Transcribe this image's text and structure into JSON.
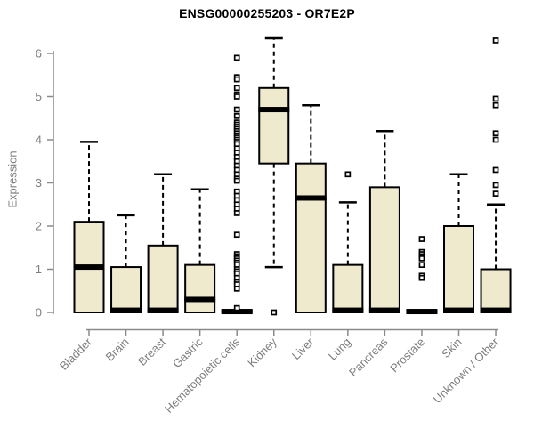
{
  "colors": {
    "background": "#FFFFFF",
    "title": "#000000",
    "axis": "#8A8A8A",
    "tick_label": "#7E7E7E",
    "box_fill": "#EFE9CE",
    "box_stroke": "#000000",
    "median": "#000000",
    "whisker": "#000000",
    "outlier": "#000000"
  },
  "chart_data": {
    "type": "boxplot",
    "title": "ENSG00000255203 - OR7E2P",
    "ylabel": "Expression",
    "xlabel": "",
    "ylim": [
      -0.4,
      6.45
    ],
    "yticks": [
      0,
      1,
      2,
      3,
      4,
      5,
      6
    ],
    "grid": false,
    "legend": false,
    "categories": [
      "Bladder",
      "Brain",
      "Breast",
      "Gastric",
      "Hematopoietic cells",
      "Kidney",
      "Liver",
      "Lung",
      "Pancreas",
      "Prostate",
      "Skin",
      "Unknown / Other"
    ],
    "series": [
      {
        "name": "Bladder",
        "low": 0,
        "q1": 0,
        "median": 1.05,
        "q3": 2.1,
        "high": 3.95,
        "outliers": []
      },
      {
        "name": "Brain",
        "low": 0,
        "q1": 0,
        "median": 0.05,
        "q3": 1.05,
        "high": 2.25,
        "outliers": []
      },
      {
        "name": "Breast",
        "low": 0,
        "q1": 0,
        "median": 0.05,
        "q3": 1.55,
        "high": 3.2,
        "outliers": []
      },
      {
        "name": "Gastric",
        "low": 0,
        "q1": 0,
        "median": 0.3,
        "q3": 1.1,
        "high": 2.85,
        "outliers": []
      },
      {
        "name": "Hematopoietic cells",
        "low": 0,
        "q1": 0,
        "median": 0.02,
        "q3": 0.05,
        "high": 0.05,
        "outliers": [
          5.9,
          5.45,
          5.4,
          5.2,
          5.05,
          5.0,
          4.7,
          4.55,
          4.4,
          4.35,
          4.3,
          4.25,
          4.2,
          4.15,
          4.1,
          4.05,
          4.0,
          3.95,
          3.9,
          3.8,
          3.7,
          3.6,
          3.5,
          3.4,
          3.3,
          3.2,
          3.1,
          3.05,
          2.8,
          2.7,
          2.6,
          2.5,
          2.4,
          2.3,
          1.8,
          1.35,
          1.3,
          1.25,
          1.2,
          1.15,
          1.1,
          1.0,
          0.95,
          0.9,
          0.8,
          0.7,
          0.65,
          0.55,
          0.1
        ]
      },
      {
        "name": "Kidney",
        "low": 1.05,
        "q1": 3.45,
        "median": 4.7,
        "q3": 5.2,
        "high": 6.35,
        "outliers": [
          0
        ]
      },
      {
        "name": "Liver",
        "low": 0,
        "q1": 0,
        "median": 2.65,
        "q3": 3.45,
        "high": 4.8,
        "outliers": []
      },
      {
        "name": "Lung",
        "low": 0,
        "q1": 0,
        "median": 0.05,
        "q3": 1.1,
        "high": 2.55,
        "outliers": [
          3.2
        ]
      },
      {
        "name": "Pancreas",
        "low": 0,
        "q1": 0,
        "median": 0.05,
        "q3": 2.9,
        "high": 4.2,
        "outliers": []
      },
      {
        "name": "Prostate",
        "low": 0,
        "q1": 0,
        "median": 0.02,
        "q3": 0.05,
        "high": 0.05,
        "outliers": [
          1.7,
          1.4,
          1.35,
          1.3,
          1.25,
          1.1,
          0.85,
          0.8
        ]
      },
      {
        "name": "Skin",
        "low": 0,
        "q1": 0,
        "median": 0.05,
        "q3": 2.0,
        "high": 3.2,
        "outliers": []
      },
      {
        "name": "Unknown / Other",
        "low": 0,
        "q1": 0,
        "median": 0.05,
        "q3": 1.0,
        "high": 2.5,
        "outliers": [
          6.3,
          4.95,
          4.8,
          4.15,
          4.0,
          3.3,
          2.95,
          2.75
        ]
      }
    ]
  }
}
